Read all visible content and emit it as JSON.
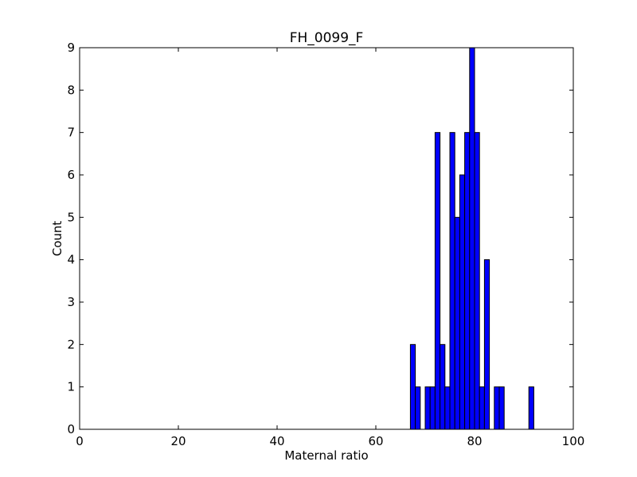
{
  "chart_data": {
    "type": "bar",
    "title": "FH_0099_F",
    "xlabel": "Maternal ratio",
    "ylabel": "Count",
    "xlim": [
      0,
      100
    ],
    "ylim": [
      0,
      9
    ],
    "xticks": [
      "0",
      "20",
      "40",
      "60",
      "80",
      "100"
    ],
    "yticks": [
      "0",
      "1",
      "2",
      "3",
      "4",
      "5",
      "6",
      "7",
      "8",
      "9"
    ],
    "bin_width": 1,
    "bins": [
      {
        "x": 67,
        "count": 2
      },
      {
        "x": 68,
        "count": 1
      },
      {
        "x": 70,
        "count": 1
      },
      {
        "x": 71,
        "count": 1
      },
      {
        "x": 72,
        "count": 7
      },
      {
        "x": 73,
        "count": 2
      },
      {
        "x": 74,
        "count": 1
      },
      {
        "x": 75,
        "count": 7
      },
      {
        "x": 76,
        "count": 5
      },
      {
        "x": 77,
        "count": 6
      },
      {
        "x": 78,
        "count": 7
      },
      {
        "x": 79,
        "count": 9
      },
      {
        "x": 80,
        "count": 7
      },
      {
        "x": 81,
        "count": 1
      },
      {
        "x": 82,
        "count": 4
      },
      {
        "x": 84,
        "count": 1
      },
      {
        "x": 85,
        "count": 1
      },
      {
        "x": 91,
        "count": 1
      }
    ],
    "bar_color": "#0000ff",
    "edge_color": "#000000",
    "grid": false,
    "legend": "none"
  }
}
